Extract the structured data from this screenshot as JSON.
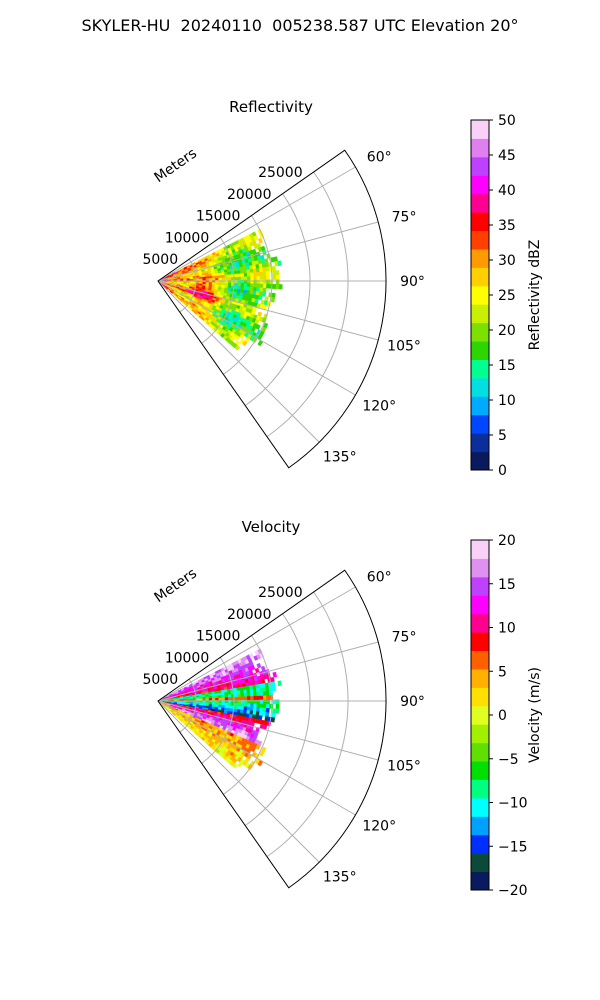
{
  "figure": {
    "title": "SKYLER-HU  20240110  005238.587 UTC Elevation 20°"
  },
  "colors": {
    "grid": "#b0b0b0",
    "axis": "#000000"
  },
  "chart_data": [
    {
      "type": "heatmap",
      "projection": "polar-sector",
      "title": "Reflectivity",
      "range_label": "Meters",
      "azimuth_range_deg": [
        55,
        145
      ],
      "range_max_m": 30000,
      "range_ticks": [
        "5000",
        "10000",
        "15000",
        "20000",
        "25000"
      ],
      "range_tick_values": [
        5000,
        10000,
        15000,
        20000,
        25000
      ],
      "azimuth_ticks": [
        "60°",
        "75°",
        "90°",
        "105°",
        "120°",
        "135°"
      ],
      "azimuth_tick_values": [
        60,
        75,
        90,
        105,
        120,
        135
      ],
      "grid": true,
      "data_extent": {
        "azimuth_deg": [
          63,
          130
        ],
        "max_range_m": 16000
      },
      "colorbar": {
        "label": "Reflectivity dBZ",
        "range": [
          0,
          50
        ],
        "ticks": [
          "0",
          "5",
          "10",
          "15",
          "20",
          "25",
          "30",
          "35",
          "40",
          "45",
          "50"
        ],
        "tick_values": [
          0,
          5,
          10,
          15,
          20,
          25,
          30,
          35,
          40,
          45,
          50
        ],
        "colors": [
          "#0a1a5e",
          "#0b2f9a",
          "#0047ff",
          "#00aaff",
          "#00e0e0",
          "#00ff90",
          "#2ed600",
          "#7ce000",
          "#c8f000",
          "#ffff00",
          "#ffd000",
          "#ff9a00",
          "#ff4000",
          "#ff0000",
          "#ff0090",
          "#ff00ff",
          "#c040ff",
          "#e080f0",
          "#f8d0f8"
        ]
      }
    },
    {
      "type": "heatmap",
      "projection": "polar-sector",
      "title": "Velocity",
      "range_label": "Meters",
      "azimuth_range_deg": [
        55,
        145
      ],
      "range_max_m": 30000,
      "range_ticks": [
        "5000",
        "10000",
        "15000",
        "20000",
        "25000"
      ],
      "range_tick_values": [
        5000,
        10000,
        15000,
        20000,
        25000
      ],
      "azimuth_ticks": [
        "60°",
        "75°",
        "90°",
        "105°",
        "120°",
        "135°"
      ],
      "azimuth_tick_values": [
        60,
        75,
        90,
        105,
        120,
        135
      ],
      "grid": true,
      "data_extent": {
        "azimuth_deg": [
          63,
          130
        ],
        "max_range_m": 16000
      },
      "colorbar": {
        "label": "Velocity (m/s)",
        "range": [
          -20,
          20
        ],
        "ticks": [
          "−20",
          "−15",
          "−10",
          "−5",
          "0",
          "5",
          "10",
          "15",
          "20"
        ],
        "tick_values": [
          -20,
          -15,
          -10,
          -5,
          0,
          5,
          10,
          15,
          20
        ],
        "colors": [
          "#0a1a5e",
          "#0b4a3a",
          "#0030ff",
          "#00a0ff",
          "#00ffff",
          "#00ff80",
          "#00e000",
          "#60e000",
          "#a0f000",
          "#e0ff20",
          "#ffe000",
          "#ffb000",
          "#ff6000",
          "#ff0000",
          "#ff0090",
          "#ff00ff",
          "#c040ff",
          "#e090f0",
          "#f8d0f8"
        ]
      }
    }
  ]
}
